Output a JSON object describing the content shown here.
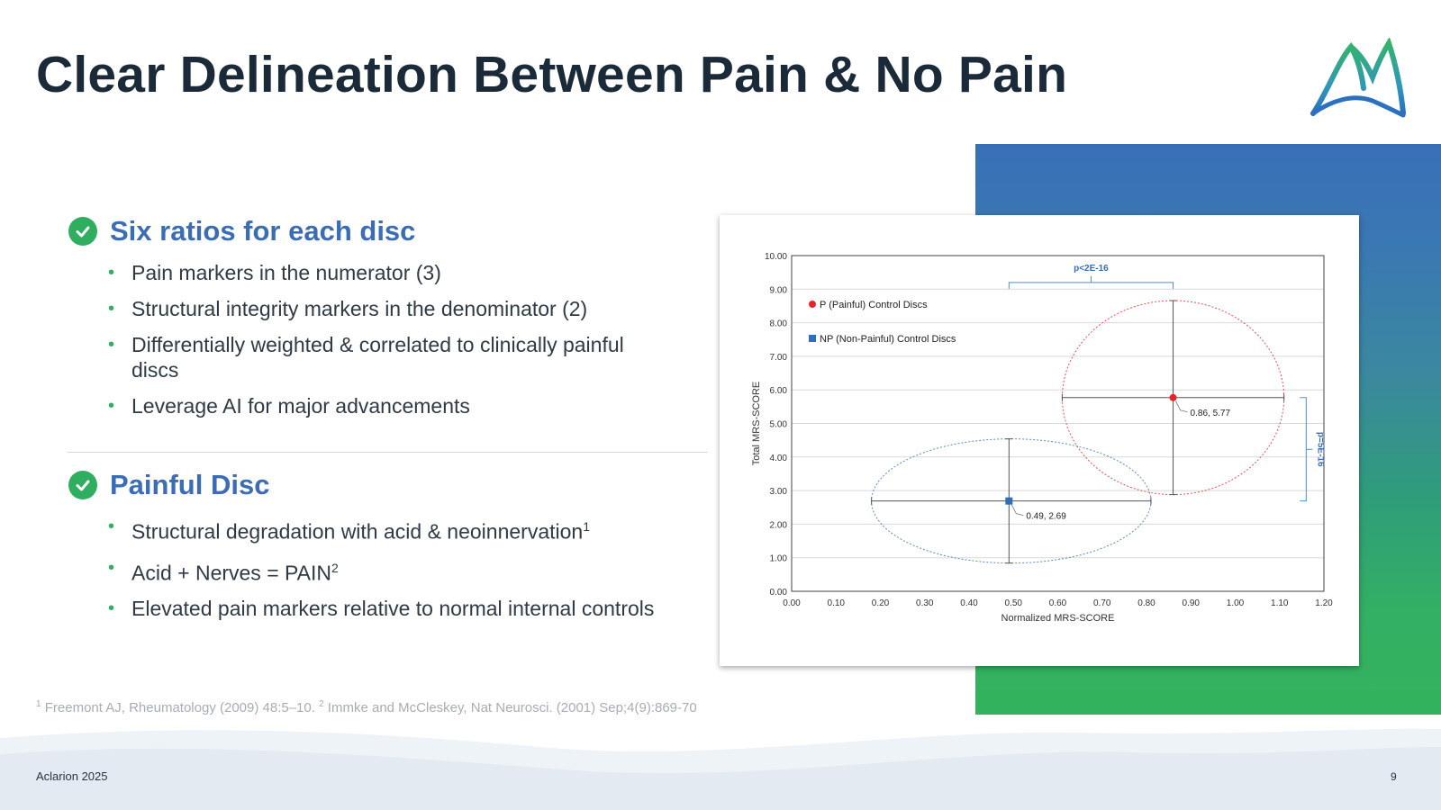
{
  "slide": {
    "title": "Clear Delineation Between Pain & No Pain",
    "footer_left": "Aclarion 2025",
    "page_number": "9",
    "footnote": {
      "ref1_marker": "1",
      "ref1_text": " Freemont AJ, Rheumatology (2009)  48:5–10. ",
      "ref2_marker": "2",
      "ref2_text": " Immke and McCleskey, Nat Neurosci. (2001) Sep;4(9):869-70"
    }
  },
  "sections": [
    {
      "title": "Six ratios for each disc",
      "bullets": [
        {
          "text": "Pain markers in the numerator (3)",
          "sup": ""
        },
        {
          "text": "Structural integrity markers in the denominator (2)",
          "sup": ""
        },
        {
          "text": "Differentially weighted & correlated to clinically painful discs",
          "sup": ""
        },
        {
          "text": "Leverage AI for major advancements",
          "sup": ""
        }
      ]
    },
    {
      "title": "Painful Disc",
      "bullets": [
        {
          "text": "Structural degradation with acid & neoinnervation",
          "sup": "1"
        },
        {
          "text": "Acid + Nerves = PAIN",
          "sup": "2"
        },
        {
          "text": "Elevated pain markers relative to normal internal controls",
          "sup": ""
        }
      ]
    }
  ],
  "colors": {
    "accent_blue": "#3a6db5",
    "accent_green": "#2fae5f",
    "painful_red": "#e8242a",
    "nonpainful_blue": "#2f6fb8",
    "bracket_blue": "#4a90c8"
  },
  "icons": {
    "section_bullet": "check-circle-icon",
    "brand": "aclarion-logo"
  },
  "chart_data": {
    "type": "scatter",
    "title": "",
    "xlabel": "Normalized MRS-SCORE",
    "ylabel": "Total MRS-SCORE",
    "xlim": [
      0,
      1.2
    ],
    "ylim": [
      0,
      10
    ],
    "xticks": [
      "0.00",
      "0.10",
      "0.20",
      "0.30",
      "0.40",
      "0.50",
      "0.60",
      "0.70",
      "0.80",
      "0.90",
      "1.00",
      "1.10",
      "1.20"
    ],
    "yticks": [
      "0.00",
      "1.00",
      "2.00",
      "3.00",
      "4.00",
      "5.00",
      "6.00",
      "7.00",
      "8.00",
      "9.00",
      "10.00"
    ],
    "grid": "horizontal",
    "legend_position": "top-left",
    "series": [
      {
        "name": "P (Painful) Control Discs",
        "marker": "circle",
        "color": "#e8242a",
        "x": 0.86,
        "y": 5.77,
        "label": "0.86, 5.77",
        "x_range": [
          0.61,
          1.11
        ],
        "y_range": [
          2.88,
          8.66
        ]
      },
      {
        "name": "NP (Non-Painful) Control Discs",
        "marker": "square",
        "color": "#2f6fb8",
        "x": 0.49,
        "y": 2.69,
        "label": "0.49, 2.69",
        "x_range": [
          0.18,
          0.81
        ],
        "y_range": [
          0.84,
          4.54
        ]
      }
    ],
    "annotations": [
      {
        "text": "p<2E-16",
        "orientation": "horizontal",
        "from_x": 0.49,
        "to_x": 0.86,
        "at_y": 9.2
      },
      {
        "text": "p=5E-16",
        "orientation": "vertical",
        "from_y": 2.69,
        "to_y": 5.77,
        "at_x": 1.16
      }
    ]
  }
}
